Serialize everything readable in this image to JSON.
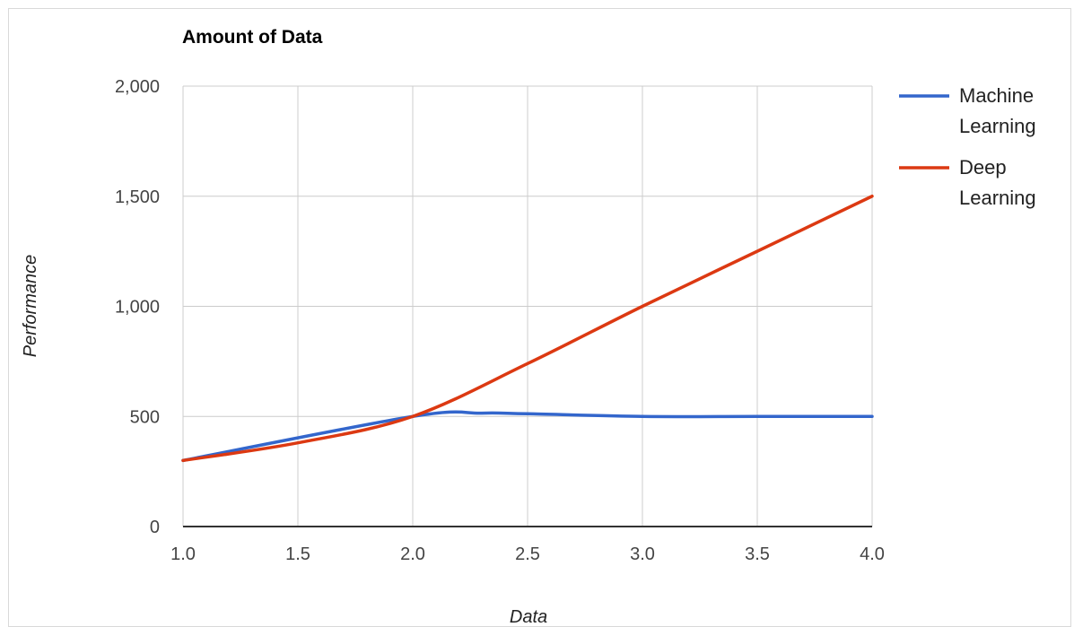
{
  "chart_data": {
    "type": "line",
    "title": "Amount of Data",
    "xlabel": "Data",
    "ylabel": "Performance",
    "xlim": [
      1.0,
      4.0
    ],
    "ylim": [
      0,
      2000
    ],
    "x_ticks": [
      "1.0",
      "1.5",
      "2.0",
      "2.5",
      "3.0",
      "3.5",
      "4.0"
    ],
    "y_ticks": [
      "0",
      "500",
      "1,000",
      "1,500",
      "2,000"
    ],
    "grid": true,
    "legend_position": "right",
    "series": [
      {
        "name": "Machine Learning",
        "color": "#3366cc",
        "points": [
          [
            1.0,
            300
          ],
          [
            2.0,
            500
          ],
          [
            2.3,
            515
          ],
          [
            2.5,
            512
          ],
          [
            3.0,
            500
          ],
          [
            3.5,
            500
          ],
          [
            4.0,
            500
          ]
        ]
      },
      {
        "name": "Deep Learning",
        "color": "#dc3912",
        "points": [
          [
            1.0,
            300
          ],
          [
            1.5,
            380
          ],
          [
            2.0,
            500
          ],
          [
            2.5,
            740
          ],
          [
            3.0,
            1000
          ],
          [
            3.5,
            1250
          ],
          [
            4.0,
            1500
          ]
        ]
      }
    ]
  }
}
